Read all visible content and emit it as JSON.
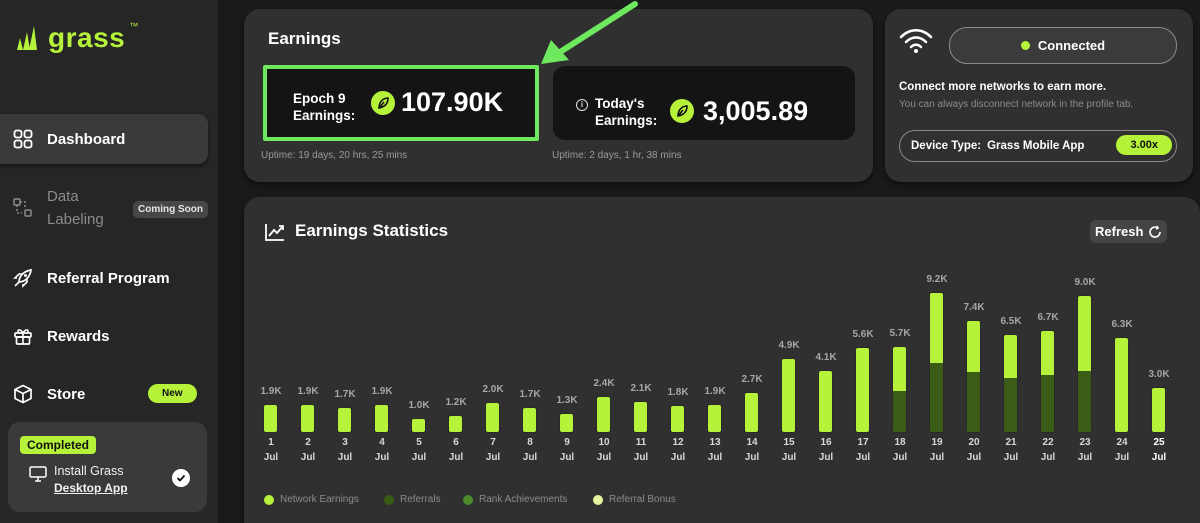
{
  "brand": {
    "name": "grass",
    "tm": "™",
    "accent": "#b6f23a"
  },
  "sidebar": {
    "items": [
      {
        "label": "Dashboard",
        "icon": "grid-icon"
      },
      {
        "label": "Data\nLabeling",
        "icon": "data-labeling-icon",
        "badge": "Coming Soon"
      },
      {
        "label": "Referral Program",
        "icon": "rocket-icon"
      },
      {
        "label": "Rewards",
        "icon": "gift-icon"
      },
      {
        "label": "Store",
        "icon": "box-icon",
        "badge": "New"
      }
    ],
    "task": {
      "status": "Completed",
      "title": "Install Grass",
      "link": "Desktop App"
    }
  },
  "earnings": {
    "heading": "Earnings",
    "epoch": {
      "label_line1": "Epoch 9",
      "label_line2": "Earnings:",
      "value": "107.90K",
      "uptime": "Uptime: 19 days, 20 hrs, 25 mins"
    },
    "today": {
      "label_line1": "Today's",
      "label_line2": "Earnings:",
      "value": "3,005.89",
      "uptime": "Uptime: 2 days, 1 hr, 38 mins"
    }
  },
  "network": {
    "status": "Connected",
    "title": "Connect more networks to earn more.",
    "subtitle": "You can always disconnect network in the profile tab.",
    "device_label": "Device Type:",
    "device_value": "Grass Mobile App",
    "multiplier": "3.00x"
  },
  "stats": {
    "title": "Earnings Statistics",
    "refresh_label": "Refresh",
    "legend": [
      {
        "label": "Network Earnings",
        "color": "#b6f23a"
      },
      {
        "label": "Referrals",
        "color": "#3a5c16"
      },
      {
        "label": "Rank Achievements",
        "color": "#4a8a2a"
      },
      {
        "label": "Referral Bonus",
        "color": "#e8f5a0"
      }
    ]
  },
  "chart_data": {
    "type": "bar",
    "categories": [
      "1",
      "2",
      "3",
      "4",
      "5",
      "6",
      "7",
      "8",
      "9",
      "10",
      "11",
      "12",
      "13",
      "14",
      "15",
      "16",
      "17",
      "18",
      "19",
      "20",
      "21",
      "22",
      "23",
      "24",
      "25"
    ],
    "month": "Jul",
    "value_labels": [
      "1.9K",
      "1.9K",
      "1.7K",
      "1.9K",
      "1.0K",
      "1.2K",
      "2.0K",
      "1.7K",
      "1.3K",
      "2.4K",
      "2.1K",
      "1.8K",
      "1.9K",
      "2.7K",
      "4.9K",
      "4.1K",
      "5.6K",
      "5.7K",
      "9.2K",
      "7.4K",
      "6.5K",
      "6.7K",
      "9.0K",
      "6.3K",
      "3.0K"
    ],
    "series": [
      {
        "name": "Network Earnings",
        "values": [
          1.9,
          1.9,
          1.7,
          1.9,
          1.0,
          1.2,
          2.0,
          1.7,
          1.3,
          2.4,
          2.1,
          1.8,
          1.9,
          2.7,
          4.9,
          4.1,
          5.6,
          3.0,
          4.7,
          3.5,
          3.0,
          3.0,
          5.0,
          6.3,
          3.0
        ]
      },
      {
        "name": "Referrals",
        "values": [
          0,
          0,
          0,
          0,
          0,
          0,
          0,
          0,
          0,
          0,
          0,
          0,
          0,
          0,
          0,
          0,
          0,
          2.7,
          4.5,
          3.9,
          3.5,
          3.7,
          4.0,
          0,
          0
        ]
      }
    ],
    "ylim": [
      0,
      9.5
    ],
    "highlight_category": "25"
  }
}
